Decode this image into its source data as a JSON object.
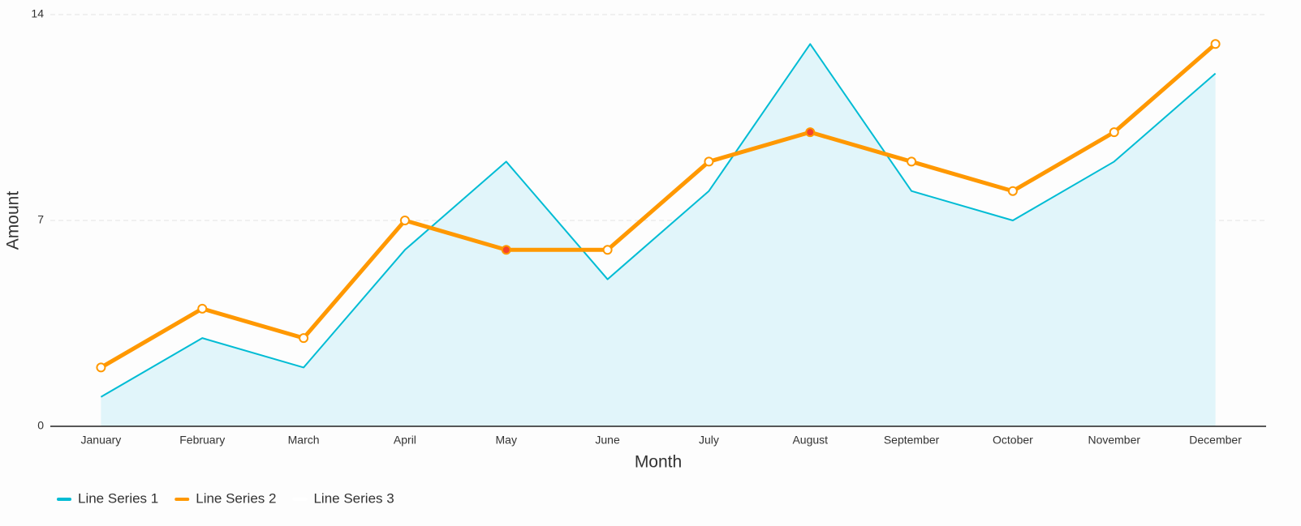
{
  "chart_data": {
    "type": "line",
    "xlabel": "Month",
    "ylabel": "Amount",
    "categories": [
      "January",
      "February",
      "March",
      "April",
      "May",
      "June",
      "July",
      "August",
      "September",
      "October",
      "November",
      "December"
    ],
    "series": [
      {
        "name": "Line Series 1",
        "color": "#00bcd4",
        "area": true,
        "area_color": "#e1f5fa",
        "values": [
          1,
          3,
          2,
          6,
          9,
          5,
          8,
          13,
          8,
          7,
          9,
          12
        ]
      },
      {
        "name": "Line Series 2",
        "color": "#ff9800",
        "markers": true,
        "highlight": [
          4,
          7
        ],
        "highlight_color": "#f4432c",
        "values": [
          2,
          4,
          3,
          7,
          6,
          6,
          9,
          10,
          9,
          8,
          10,
          13
        ]
      },
      {
        "name": "Line Series 3",
        "color": "#ffffff",
        "values": [
          null,
          null,
          null,
          null,
          null,
          null,
          null,
          null,
          null,
          null,
          null,
          null
        ]
      }
    ],
    "ylim": [
      0,
      14
    ],
    "yticks": [
      0,
      7,
      14
    ],
    "grid": true,
    "legend": "bottom-left"
  }
}
